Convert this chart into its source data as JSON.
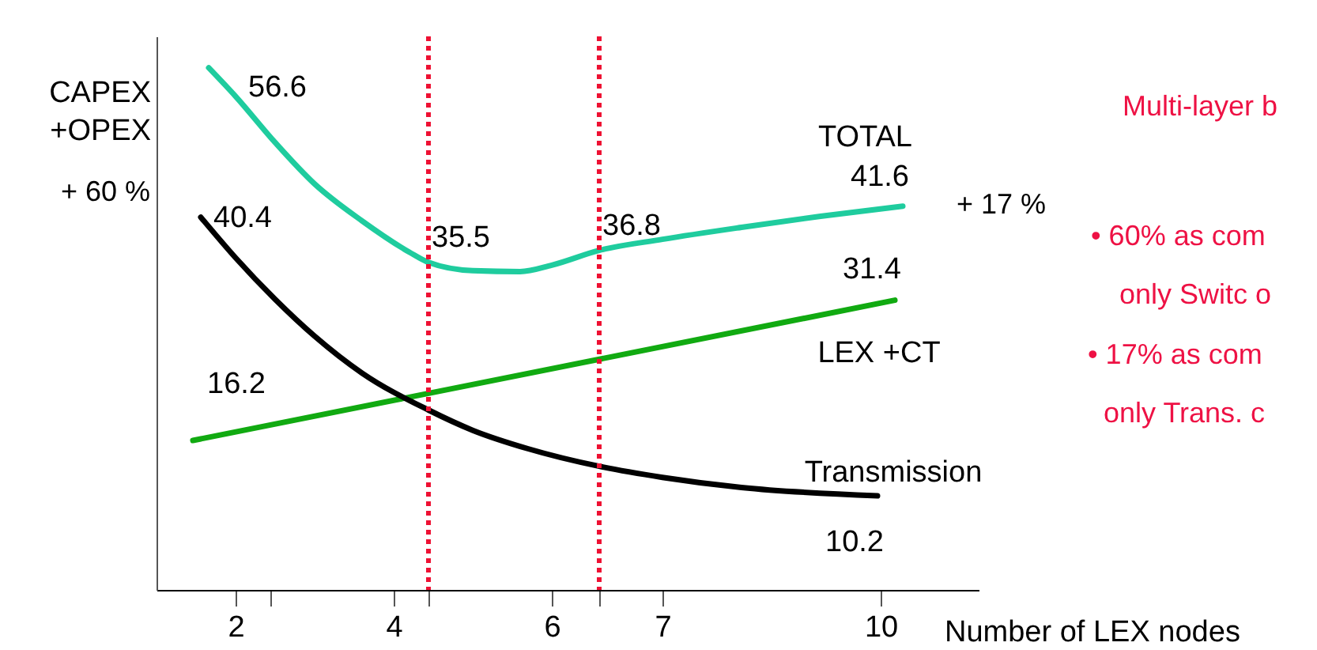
{
  "chart_data": {
    "type": "line",
    "xlabel": "Number of LEX nodes",
    "ylabel": "CAPEX +OPEX",
    "xlim": [
      1,
      11.4
    ],
    "ylim": [
      0,
      60
    ],
    "tick_labels": "x",
    "xticks": [
      2,
      4,
      6,
      {
        "value": 7.4,
        "label": "7"
      },
      {
        "value": 10.16,
        "label": "10"
      },
      {
        "value": 2.44,
        "label": null
      },
      {
        "value": 4.44,
        "label": null
      },
      {
        "value": 6.6,
        "label": null
      }
    ],
    "grid": false,
    "marker": "none",
    "line_style": "solid",
    "series": [
      {
        "name": "TOTAL",
        "color": "#1fcc9e",
        "x": [
          1.66,
          2,
          2.5,
          3,
          3.6,
          4.2,
          4.44,
          5,
          5.6,
          6,
          6.6,
          7.4,
          8.4,
          9.4,
          10.44
        ],
        "values": [
          56.6,
          53.5,
          48.5,
          44,
          40,
          36.6,
          35.5,
          34.6,
          34.5,
          35.2,
          36.8,
          38,
          39.3,
          40.5,
          41.6
        ],
        "value_labels": [
          "56.6",
          null,
          null,
          null,
          null,
          null,
          "35.5",
          null,
          null,
          null,
          "36.8",
          null,
          null,
          null,
          "41.6"
        ]
      },
      {
        "name": "LEX +CT",
        "color": "#11aa11",
        "x": [
          1.46,
          10.34
        ],
        "values": [
          16.2,
          31.4
        ],
        "data_labels": true
      },
      {
        "name": "Transmission",
        "color": "#000000",
        "x": [
          1.56,
          2,
          2.5,
          3,
          3.6,
          4.44,
          5,
          5.7,
          6.6,
          7.4,
          8.4,
          10.12
        ],
        "values": [
          40.4,
          36,
          31.5,
          27.5,
          23.5,
          19.5,
          17.3,
          15.3,
          13.4,
          12.2,
          11.1,
          10.2
        ],
        "value_labels": [
          "40.4",
          null,
          null,
          null,
          null,
          null,
          null,
          null,
          null,
          null,
          null,
          "10.2"
        ]
      }
    ],
    "ref_lines": [
      {
        "axis": "x",
        "value": 4.44,
        "color": "#ee1133",
        "line_style": "dotted"
      },
      {
        "axis": "x",
        "value": 6.6,
        "color": "#ee1133",
        "line_style": "dotted"
      }
    ],
    "annotations": [
      "+ 60 %",
      "+ 17 %",
      "Multi-layer b",
      "• 60% as com",
      "only Switc o",
      "• 17% as com",
      "only Trans. c"
    ]
  }
}
